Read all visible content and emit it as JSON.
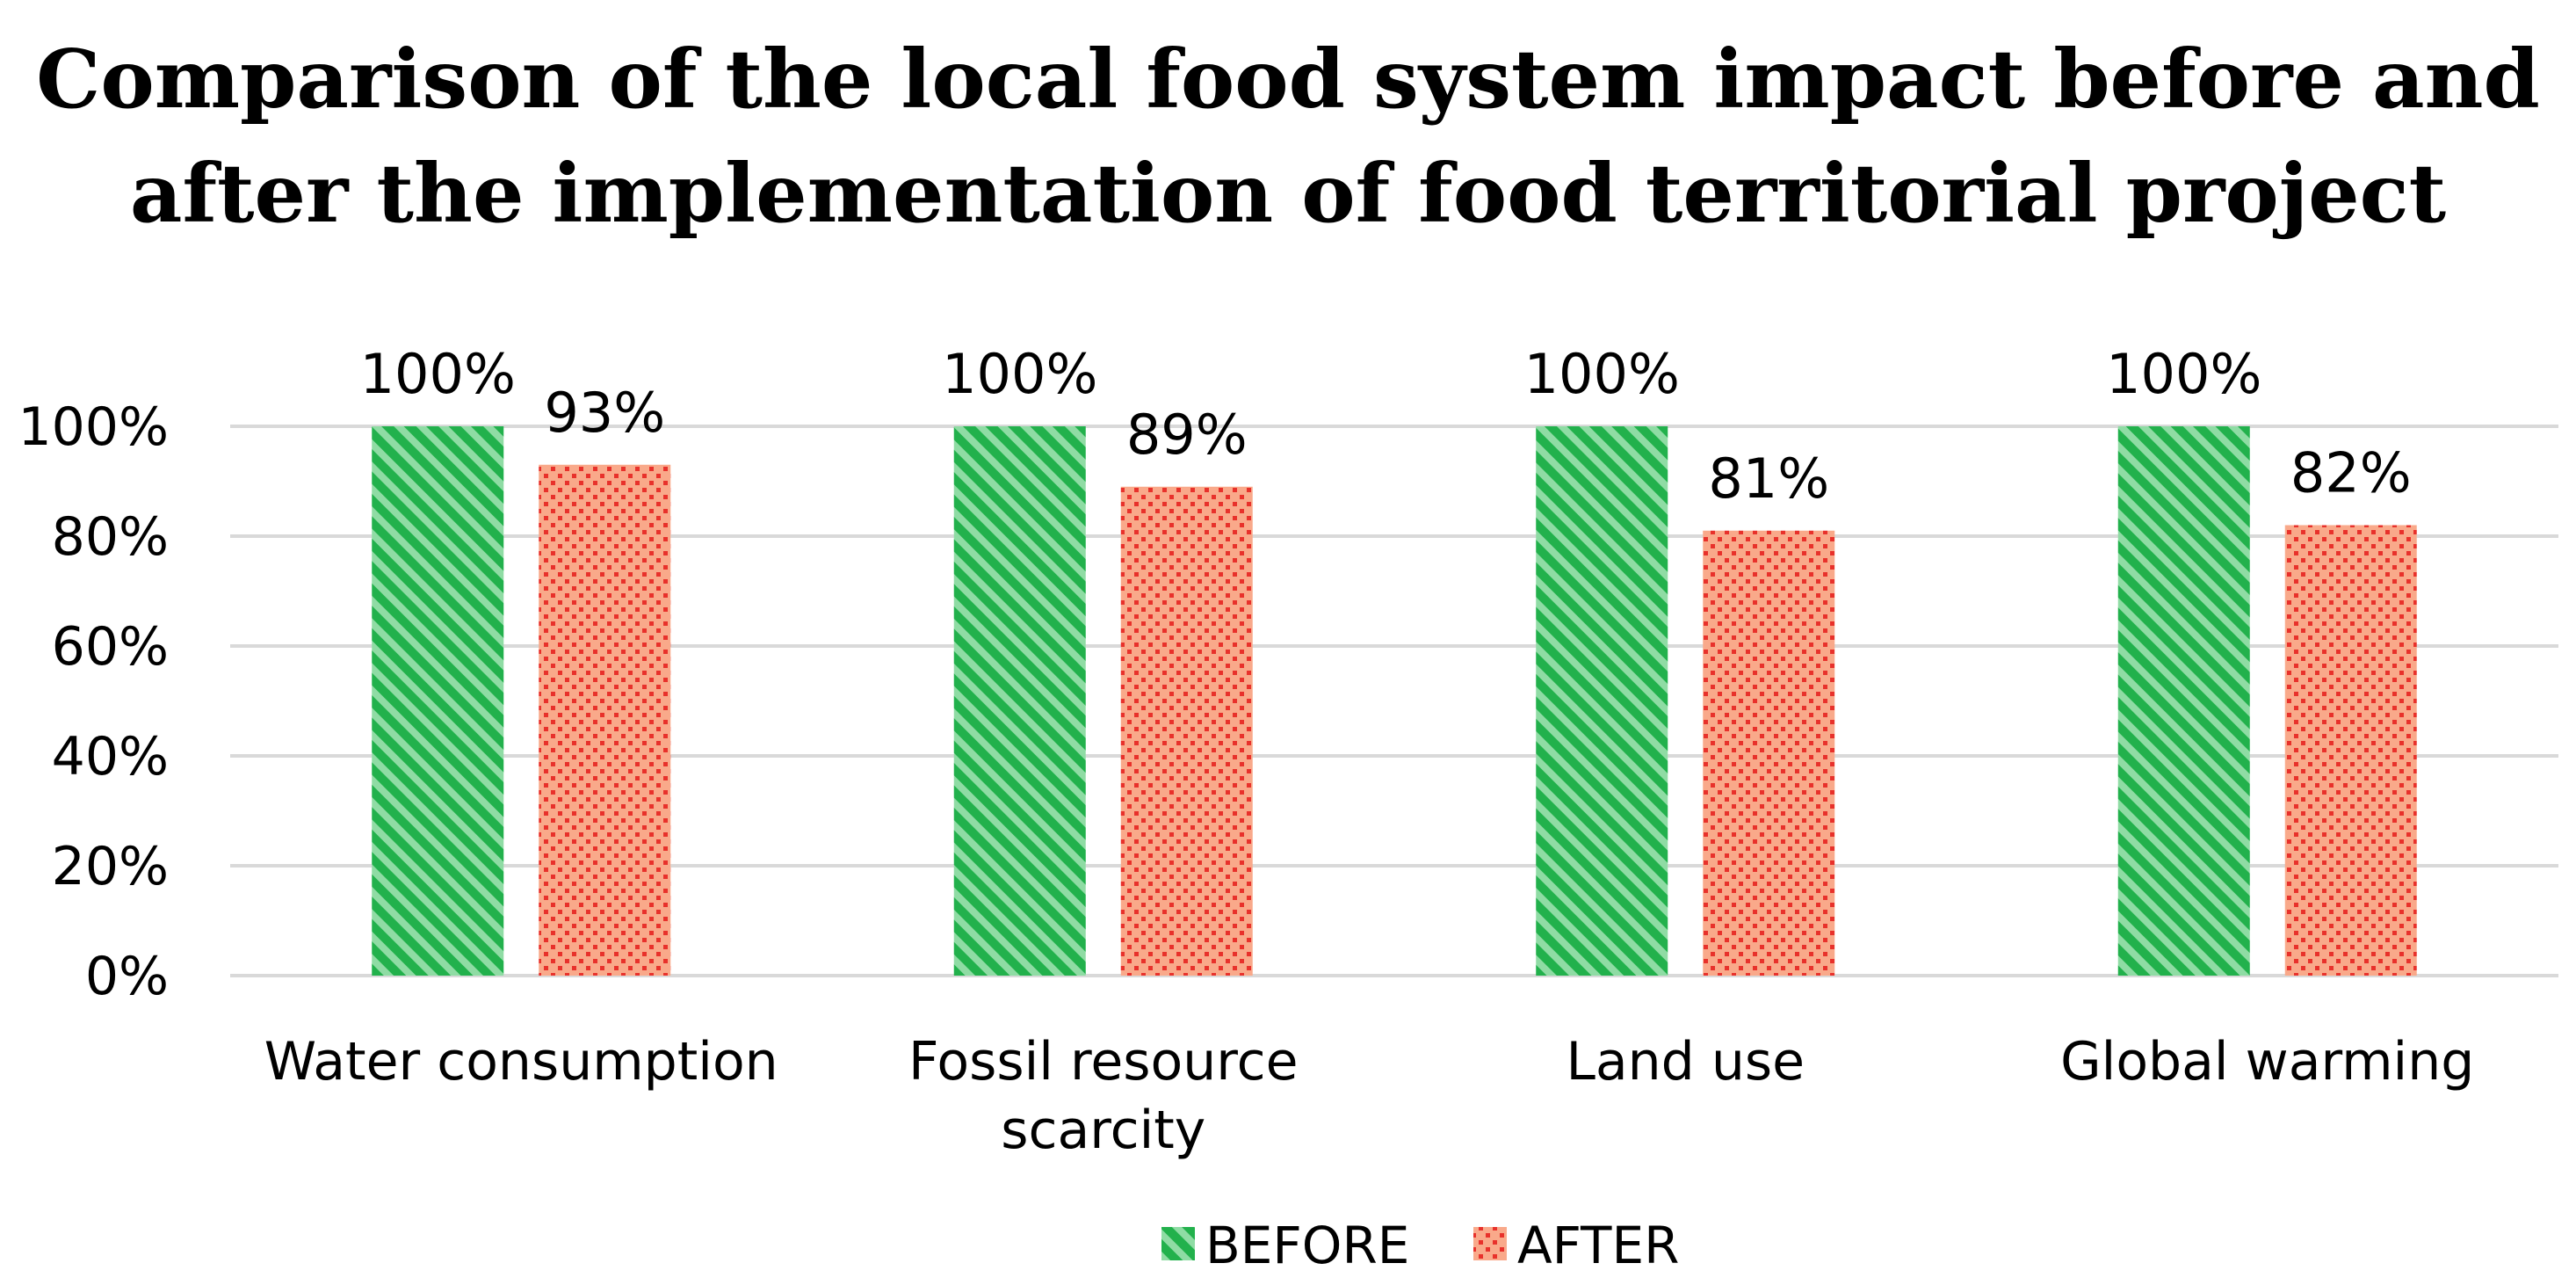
{
  "chart_data": {
    "type": "bar",
    "title": [
      "Comparison of the local food system impact before and",
      "after the implementation of food territorial project"
    ],
    "categories": [
      [
        "Water consumption"
      ],
      [
        "Fossil resource",
        "scarcity"
      ],
      [
        "Land use"
      ],
      [
        "Global warming"
      ]
    ],
    "series": [
      {
        "name": "BEFORE",
        "values": [
          100,
          100,
          100,
          100
        ],
        "labels": [
          "100%",
          "100%",
          "100%",
          "100%"
        ],
        "color": "#22b14c",
        "pattern": "diagonal-stripes"
      },
      {
        "name": "AFTER",
        "values": [
          93,
          89,
          81,
          82
        ],
        "labels": [
          "93%",
          "89%",
          "81%",
          "82%"
        ],
        "color": "#f7966a",
        "pattern": "dots",
        "dot_color": "#e8312b"
      }
    ],
    "yticks": [
      0,
      20,
      40,
      60,
      80,
      100
    ],
    "ytick_labels": [
      "0%",
      "20%",
      "40%",
      "60%",
      "80%",
      "100%"
    ],
    "ylim": [
      0,
      100
    ],
    "grid": true,
    "grid_color": "#d9d9d9",
    "legend_position": "bottom",
    "xlabel": "",
    "ylabel": ""
  }
}
